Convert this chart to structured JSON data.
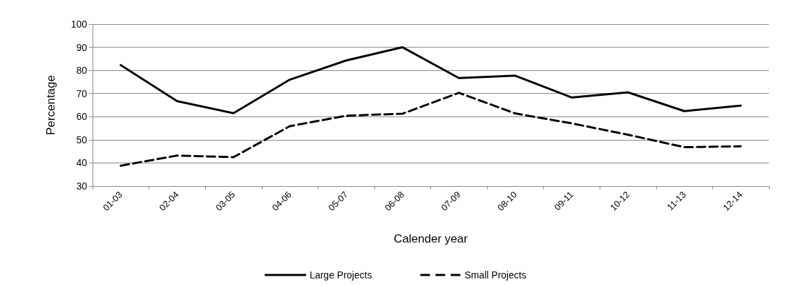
{
  "chart_data": {
    "type": "line",
    "xlabel": "Calender year",
    "ylabel": "Percentage",
    "categories": [
      "01-03",
      "02-04",
      "03-05",
      "04-06",
      "05-07",
      "06-08",
      "07-09",
      "08-10",
      "09-11",
      "10-12",
      "11-13",
      "12-14"
    ],
    "series": [
      {
        "name": "Large Projects",
        "color": "#000000",
        "line_style": "solid",
        "values": [
          82.3,
          66.7,
          61.5,
          76,
          84.3,
          90,
          76.7,
          77.7,
          68.3,
          70.5,
          62.4,
          64.8
        ]
      },
      {
        "name": "Small Projects",
        "color": "#000000",
        "line_style": "dashed",
        "values": [
          38.8,
          43.2,
          42.5,
          55.9,
          60.4,
          61.3,
          70.3,
          61.4,
          57.1,
          52.2,
          46.8,
          47.2
        ]
      }
    ],
    "ylim": [
      30,
      100
    ],
    "yticks": [
      30,
      40,
      50,
      60,
      70,
      80,
      90,
      100
    ],
    "grid": "y",
    "legend": "bottom",
    "marker": "none"
  }
}
